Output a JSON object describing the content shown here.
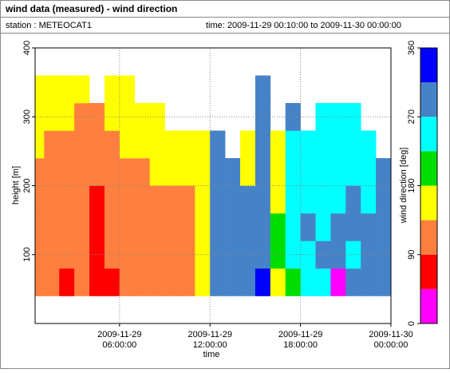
{
  "header": {
    "title": "wind data (measured) - wind direction",
    "station": "station : METEOCAT1",
    "time": "time: 2009-11-29 00:10:00 to 2009-11-30 00:00:00"
  },
  "chart_data": {
    "type": "heatmap",
    "x_label": "time",
    "y_label": "height [m]",
    "x": [
      0,
      1,
      2,
      3,
      4,
      5,
      6,
      7,
      8,
      9,
      10,
      11,
      12,
      13,
      14,
      15,
      16,
      17,
      18,
      19,
      20,
      21,
      22,
      23
    ],
    "x_width": 1,
    "height_bins": [
      40,
      80,
      120,
      160,
      200,
      240,
      280,
      320,
      360
    ],
    "z": [
      [
        112,
        112,
        112,
        112,
        112,
        157,
        157,
        157
      ],
      [
        112,
        112,
        112,
        112,
        112,
        112,
        157,
        157
      ],
      [
        67,
        112,
        112,
        112,
        112,
        112,
        157,
        157
      ],
      [
        112,
        112,
        112,
        112,
        112,
        112,
        112,
        157
      ],
      [
        67,
        67,
        67,
        67,
        112,
        112,
        112,
        null
      ],
      [
        67,
        112,
        112,
        112,
        112,
        112,
        157,
        157
      ],
      [
        112,
        112,
        112,
        112,
        112,
        157,
        157,
        157
      ],
      [
        112,
        112,
        112,
        112,
        112,
        157,
        157,
        null
      ],
      [
        112,
        112,
        112,
        112,
        157,
        157,
        157,
        null
      ],
      [
        112,
        112,
        112,
        112,
        157,
        157,
        null,
        null
      ],
      [
        112,
        112,
        112,
        112,
        157,
        157,
        null,
        null
      ],
      [
        157,
        157,
        157,
        157,
        157,
        157,
        null,
        null
      ],
      [
        292,
        292,
        292,
        292,
        292,
        292,
        null,
        null
      ],
      [
        292,
        292,
        292,
        292,
        292,
        null,
        null,
        null
      ],
      [
        292,
        292,
        292,
        292,
        157,
        157,
        null,
        null
      ],
      [
        337,
        292,
        292,
        292,
        292,
        292,
        292,
        292
      ],
      [
        157,
        202,
        202,
        157,
        157,
        157,
        null,
        null
      ],
      [
        202,
        247,
        247,
        247,
        247,
        247,
        292,
        null
      ],
      [
        247,
        247,
        292,
        247,
        247,
        247,
        null,
        null
      ],
      [
        247,
        292,
        247,
        247,
        247,
        247,
        247,
        null
      ],
      [
        22,
        292,
        292,
        247,
        247,
        247,
        247,
        null
      ],
      [
        292,
        247,
        292,
        292,
        247,
        247,
        247,
        null
      ],
      [
        292,
        292,
        292,
        247,
        247,
        247,
        null,
        null
      ],
      [
        292,
        292,
        292,
        292,
        292,
        null,
        null,
        null
      ]
    ],
    "xlim": [
      0.4,
      24
    ],
    "xticks": [
      {
        "value": 6,
        "label": "2009-11-29 06:00:00"
      },
      {
        "value": 12,
        "label": "2009-11-29 12:00:00"
      },
      {
        "value": 18,
        "label": "2009-11-29 18:00:00"
      },
      {
        "value": 24,
        "label": "2009-11-30 00:00:00"
      }
    ],
    "ylim": [
      0,
      400
    ],
    "yticks": [
      100,
      200,
      300,
      400
    ],
    "grid": true,
    "colorbar": {
      "label": "wind direction [deg]",
      "bounds": [
        0,
        45,
        90,
        135,
        180,
        225,
        270,
        315,
        360
      ],
      "colors": [
        "#ff00ff",
        "#ff0000",
        "#ff7f3f",
        "#ffff00",
        "#00dd00",
        "#00ffff",
        "#4682c8",
        "#0000ff"
      ],
      "ticks": [
        0,
        90,
        180,
        270,
        360
      ]
    }
  }
}
